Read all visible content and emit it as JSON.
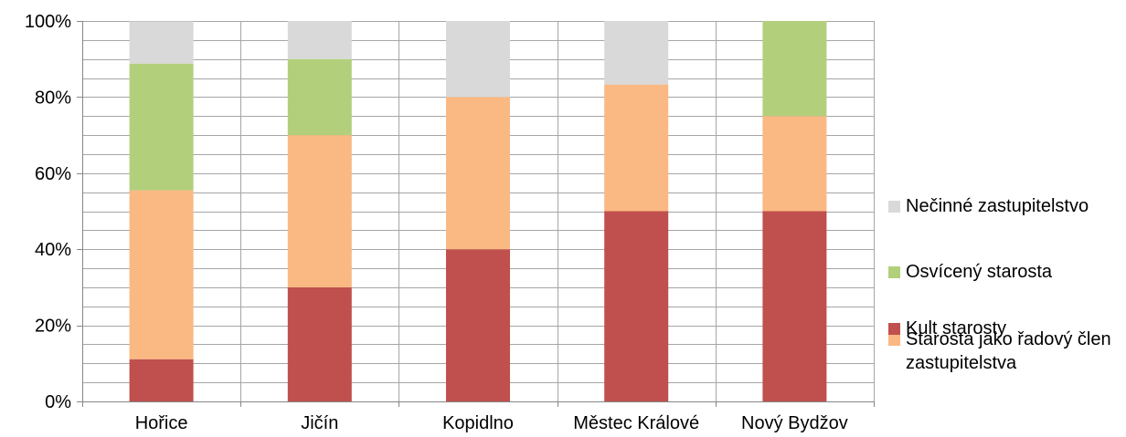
{
  "chart_data": {
    "type": "bar",
    "stacked": "percent",
    "categories": [
      "Hořice",
      "Jičín",
      "Kopidlno",
      "Městec Králové",
      "Nový Bydžov"
    ],
    "series": [
      {
        "name": "Kult starosty",
        "color": "#c0504d",
        "values": [
          11.1,
          30,
          40,
          50,
          50
        ]
      },
      {
        "name": "Starosta jako řadový člen zastupitelstva",
        "color": "#fab882",
        "values": [
          44.4,
          40,
          40,
          33.3,
          25
        ]
      },
      {
        "name": "Osvícený starosta",
        "color": "#b2cf7c",
        "values": [
          33.3,
          20,
          0,
          0,
          25
        ]
      },
      {
        "name": "Nečinné zastupitelstvo",
        "color": "#d9d9d9",
        "values": [
          11.1,
          10,
          20,
          16.7,
          0
        ]
      }
    ],
    "y_ticks": [
      "0%",
      "20%",
      "40%",
      "60%",
      "80%",
      "100%"
    ],
    "ylim": [
      0,
      100
    ],
    "grid": true,
    "legend_position": "right"
  }
}
